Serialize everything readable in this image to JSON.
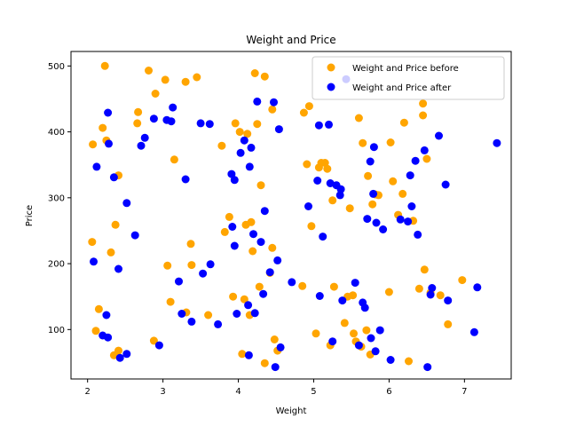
{
  "chart_data": {
    "type": "scatter",
    "title": "Weight and Price",
    "xlabel": "Weight",
    "ylabel": "Price",
    "xlim": [
      1.78,
      7.62
    ],
    "ylim": [
      25,
      522
    ],
    "xticks": [
      2,
      3,
      4,
      5,
      6,
      7
    ],
    "yticks": [
      100,
      200,
      300,
      400,
      500
    ],
    "legend_position": "top-right",
    "grid": false,
    "series": [
      {
        "name": "Weight and Price before",
        "color": "#FFA500",
        "points": [
          [
            2.06,
            233
          ],
          [
            2.07,
            381
          ],
          [
            2.11,
            98
          ],
          [
            2.15,
            131
          ],
          [
            2.2,
            406
          ],
          [
            2.23,
            500
          ],
          [
            2.25,
            387
          ],
          [
            2.31,
            217
          ],
          [
            2.35,
            61
          ],
          [
            2.37,
            259
          ],
          [
            2.41,
            334
          ],
          [
            2.41,
            68
          ],
          [
            2.66,
            413
          ],
          [
            2.67,
            430
          ],
          [
            2.81,
            493
          ],
          [
            2.88,
            83
          ],
          [
            2.9,
            458
          ],
          [
            3.03,
            479
          ],
          [
            3.06,
            197
          ],
          [
            3.1,
            142
          ],
          [
            3.15,
            358
          ],
          [
            3.3,
            476
          ],
          [
            3.31,
            126
          ],
          [
            3.37,
            230
          ],
          [
            3.38,
            198
          ],
          [
            3.45,
            483
          ],
          [
            3.6,
            122
          ],
          [
            3.78,
            379
          ],
          [
            3.82,
            248
          ],
          [
            3.88,
            271
          ],
          [
            3.93,
            150
          ],
          [
            3.96,
            413
          ],
          [
            4.02,
            400
          ],
          [
            4.05,
            63
          ],
          [
            4.08,
            146
          ],
          [
            4.1,
            259
          ],
          [
            4.12,
            397
          ],
          [
            4.15,
            122
          ],
          [
            4.17,
            263
          ],
          [
            4.19,
            219
          ],
          [
            4.22,
            489
          ],
          [
            4.25,
            412
          ],
          [
            4.28,
            165
          ],
          [
            4.3,
            319
          ],
          [
            4.35,
            484
          ],
          [
            4.35,
            49
          ],
          [
            4.42,
            186
          ],
          [
            4.45,
            224
          ],
          [
            4.45,
            434
          ],
          [
            4.48,
            85
          ],
          [
            4.52,
            68
          ],
          [
            4.85,
            166
          ],
          [
            4.87,
            429
          ],
          [
            4.91,
            351
          ],
          [
            4.94,
            439
          ],
          [
            4.97,
            257
          ],
          [
            5.03,
            94
          ],
          [
            5.07,
            346
          ],
          [
            5.1,
            353
          ],
          [
            5.15,
            353
          ],
          [
            5.18,
            344
          ],
          [
            5.22,
            76
          ],
          [
            5.25,
            296
          ],
          [
            5.27,
            165
          ],
          [
            5.41,
            110
          ],
          [
            5.45,
            150
          ],
          [
            5.48,
            284
          ],
          [
            5.52,
            152
          ],
          [
            5.53,
            94
          ],
          [
            5.56,
            82
          ],
          [
            5.6,
            421
          ],
          [
            5.63,
            74
          ],
          [
            5.65,
            383
          ],
          [
            5.7,
            99
          ],
          [
            5.72,
            333
          ],
          [
            5.75,
            62
          ],
          [
            5.78,
            290
          ],
          [
            5.82,
            305
          ],
          [
            5.86,
            304
          ],
          [
            6.0,
            157
          ],
          [
            6.02,
            384
          ],
          [
            6.05,
            325
          ],
          [
            6.12,
            274
          ],
          [
            6.18,
            306
          ],
          [
            6.2,
            414
          ],
          [
            6.26,
            52
          ],
          [
            6.32,
            265
          ],
          [
            6.4,
            162
          ],
          [
            6.45,
            443
          ],
          [
            6.45,
            425
          ],
          [
            6.47,
            191
          ],
          [
            6.5,
            359
          ],
          [
            6.55,
            156
          ],
          [
            6.68,
            152
          ],
          [
            6.78,
            108
          ],
          [
            6.97,
            175
          ]
        ]
      },
      {
        "name": "Weight and Price after",
        "color": "#0000FF",
        "points": [
          [
            2.08,
            203
          ],
          [
            2.12,
            347
          ],
          [
            2.2,
            91
          ],
          [
            2.25,
            122
          ],
          [
            2.27,
            88
          ],
          [
            2.27,
            429
          ],
          [
            2.28,
            382
          ],
          [
            2.35,
            331
          ],
          [
            2.41,
            192
          ],
          [
            2.43,
            57
          ],
          [
            2.52,
            63
          ],
          [
            2.52,
            292
          ],
          [
            2.63,
            243
          ],
          [
            2.71,
            379
          ],
          [
            2.76,
            391
          ],
          [
            2.88,
            420
          ],
          [
            2.95,
            76
          ],
          [
            3.05,
            418
          ],
          [
            3.11,
            416
          ],
          [
            3.13,
            437
          ],
          [
            3.21,
            173
          ],
          [
            3.25,
            124
          ],
          [
            3.3,
            328
          ],
          [
            3.38,
            112
          ],
          [
            3.5,
            413
          ],
          [
            3.53,
            185
          ],
          [
            3.62,
            412
          ],
          [
            3.63,
            199
          ],
          [
            3.73,
            108
          ],
          [
            3.91,
            336
          ],
          [
            3.92,
            256
          ],
          [
            3.95,
            327
          ],
          [
            3.95,
            227
          ],
          [
            3.98,
            124
          ],
          [
            4.03,
            368
          ],
          [
            4.08,
            387
          ],
          [
            4.13,
            137
          ],
          [
            4.14,
            61
          ],
          [
            4.15,
            347
          ],
          [
            4.17,
            376
          ],
          [
            4.2,
            245
          ],
          [
            4.22,
            125
          ],
          [
            4.25,
            446
          ],
          [
            4.3,
            233
          ],
          [
            4.33,
            154
          ],
          [
            4.35,
            280
          ],
          [
            4.42,
            187
          ],
          [
            4.47,
            445
          ],
          [
            4.49,
            43
          ],
          [
            4.52,
            205
          ],
          [
            4.54,
            404
          ],
          [
            4.56,
            73
          ],
          [
            4.71,
            172
          ],
          [
            4.93,
            287
          ],
          [
            5.05,
            326
          ],
          [
            5.07,
            410
          ],
          [
            5.08,
            151
          ],
          [
            5.12,
            241
          ],
          [
            5.2,
            411
          ],
          [
            5.22,
            322
          ],
          [
            5.25,
            82
          ],
          [
            5.3,
            319
          ],
          [
            5.35,
            304
          ],
          [
            5.36,
            313
          ],
          [
            5.38,
            144
          ],
          [
            5.43,
            480
          ],
          [
            5.55,
            171
          ],
          [
            5.6,
            76
          ],
          [
            5.65,
            141
          ],
          [
            5.68,
            133
          ],
          [
            5.71,
            268
          ],
          [
            5.76,
            87
          ],
          [
            5.75,
            355
          ],
          [
            5.79,
            306
          ],
          [
            5.8,
            377
          ],
          [
            5.82,
            67
          ],
          [
            5.83,
            262
          ],
          [
            5.88,
            99
          ],
          [
            5.92,
            252
          ],
          [
            6.02,
            54
          ],
          [
            6.15,
            267
          ],
          [
            6.25,
            264
          ],
          [
            6.28,
            334
          ],
          [
            6.3,
            287
          ],
          [
            6.35,
            356
          ],
          [
            6.38,
            244
          ],
          [
            6.47,
            372
          ],
          [
            6.51,
            43
          ],
          [
            6.55,
            153
          ],
          [
            6.57,
            163
          ],
          [
            6.66,
            394
          ],
          [
            6.75,
            320
          ],
          [
            6.78,
            144
          ],
          [
            7.13,
            96
          ],
          [
            7.17,
            164
          ],
          [
            7.43,
            383
          ]
        ]
      }
    ]
  }
}
